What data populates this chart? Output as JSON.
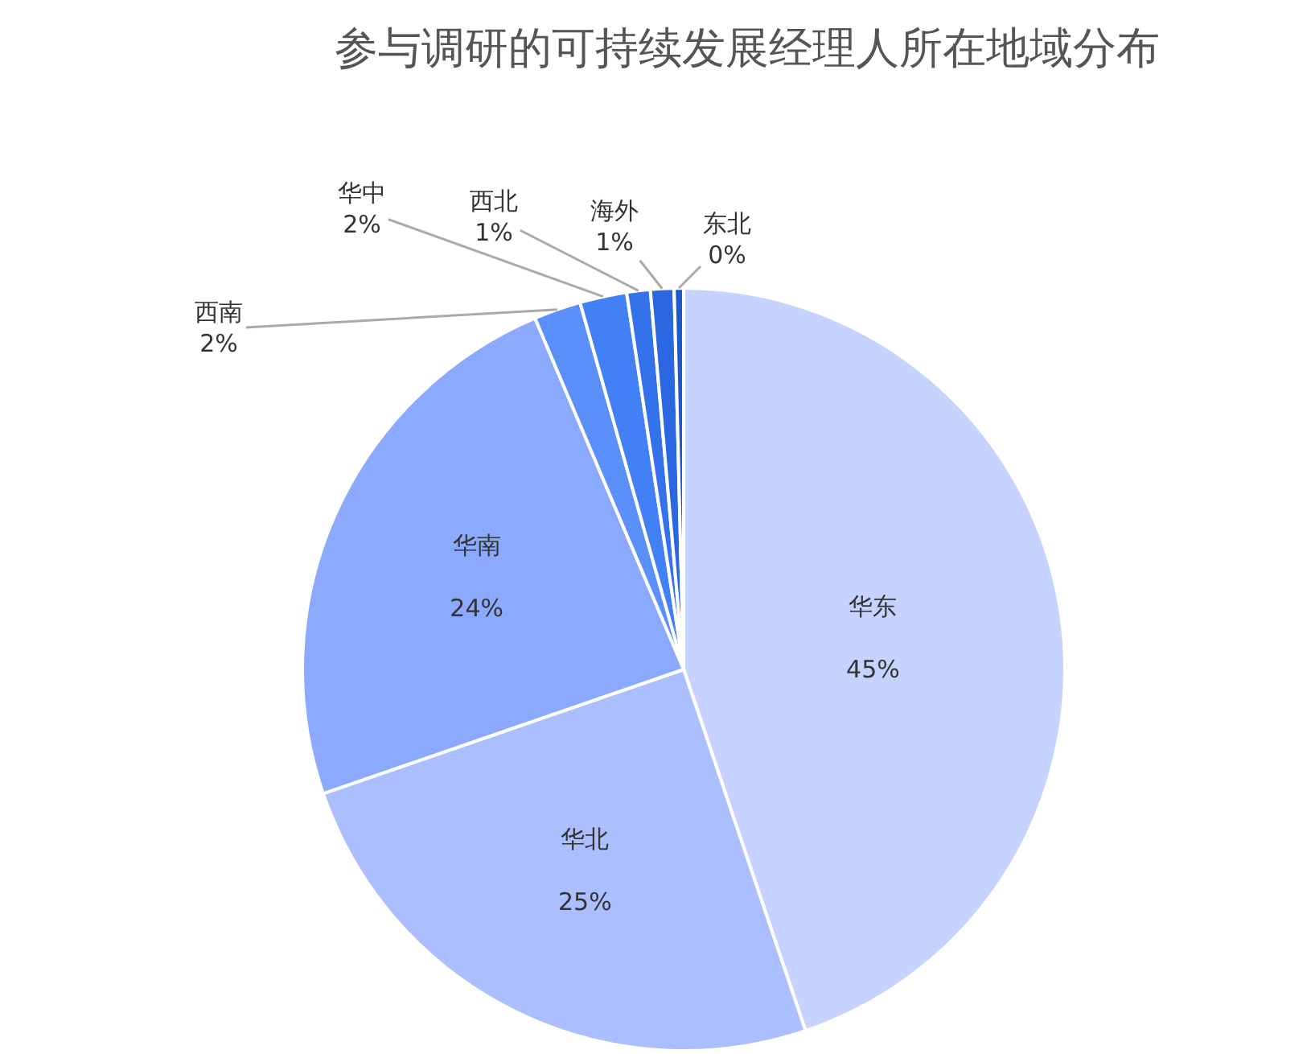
{
  "chart_data": {
    "type": "pie",
    "title": "参与调研的可持续发展经理人所在地域分布",
    "categories": [
      "华东",
      "华北",
      "华南",
      "西南",
      "华中",
      "西北",
      "海外",
      "东北"
    ],
    "values": [
      45,
      25,
      24,
      2,
      2,
      1,
      1,
      0.4
    ],
    "value_labels": [
      "45%",
      "25%",
      "24%",
      "2%",
      "2%",
      "1%",
      "1%",
      "0%"
    ],
    "colors": [
      "#c6d3ff",
      "#abbfff",
      "#8ba9fd",
      "#5b8ff9",
      "#4180f5",
      "#3472ec",
      "#2a67e0",
      "#1f58c8"
    ],
    "legend": false
  }
}
